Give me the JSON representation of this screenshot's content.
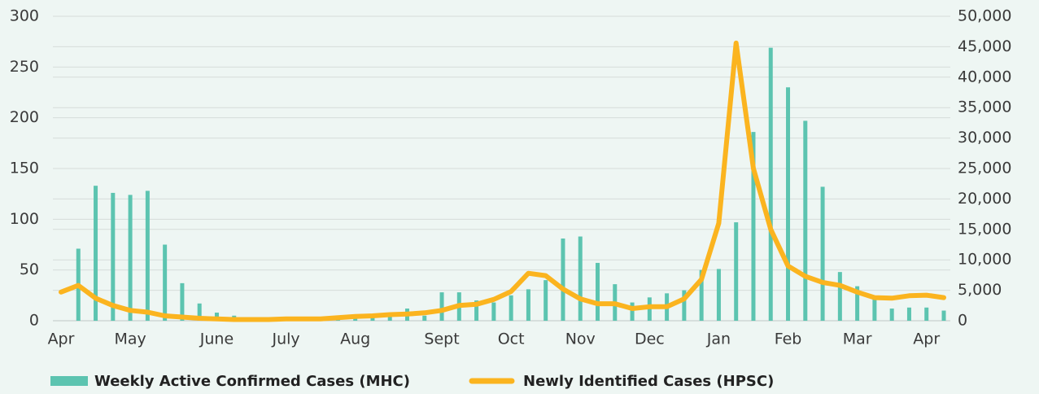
{
  "chart_data": {
    "type": "bar+line",
    "categories": [
      "Apr",
      null,
      null,
      null,
      "May",
      null,
      null,
      null,
      null,
      "June",
      null,
      null,
      null,
      "July",
      null,
      null,
      null,
      "Aug",
      null,
      null,
      null,
      null,
      "Sept",
      null,
      null,
      null,
      "Oct",
      null,
      null,
      null,
      "Nov",
      null,
      null,
      null,
      "Dec",
      null,
      null,
      null,
      "Jan",
      null,
      null,
      null,
      "Feb",
      null,
      null,
      null,
      "Mar",
      null,
      null,
      null,
      "Apr",
      null
    ],
    "series": [
      {
        "name": "Weekly Active Confirmed Cases (MHC)",
        "type": "bar",
        "color": "#5cc4b0",
        "axis": "y",
        "values": [
          null,
          71,
          133,
          126,
          124,
          128,
          75,
          37,
          17,
          8,
          5,
          2,
          1,
          1,
          1,
          1,
          2,
          3,
          4,
          4,
          12,
          5,
          28,
          28,
          20,
          18,
          25,
          31,
          40,
          81,
          83,
          57,
          36,
          18,
          23,
          27,
          30,
          50,
          51,
          97,
          186,
          269,
          230,
          197,
          132,
          48,
          34,
          22,
          12,
          13,
          13,
          10
        ]
      },
      {
        "name": "Newly Identified Cases (HPSC)",
        "type": "line",
        "color": "#fbb41f",
        "axis": "y2",
        "values": [
          4700,
          5800,
          3700,
          2500,
          1700,
          1400,
          800,
          600,
          400,
          300,
          200,
          200,
          200,
          300,
          300,
          300,
          500,
          700,
          800,
          1000,
          1100,
          1300,
          1700,
          2500,
          2700,
          3500,
          4800,
          7800,
          7400,
          5200,
          3600,
          2800,
          2800,
          2000,
          2300,
          2300,
          3600,
          6800,
          16000,
          45600,
          25000,
          15000,
          9000,
          7300,
          6300,
          5800,
          4700,
          3800,
          3700,
          4100,
          4200,
          3800
        ]
      }
    ],
    "ylim": [
      0,
      300
    ],
    "yticks": [
      0,
      50,
      100,
      150,
      200,
      250,
      300
    ],
    "y2lim": [
      0,
      50000
    ],
    "y2ticks": [
      0,
      {
        "value": 5000,
        "label": "5,000"
      },
      {
        "value": 10000,
        "label": "10,000"
      },
      {
        "value": 15000,
        "label": "15,000"
      },
      {
        "value": 20000,
        "label": "20,000"
      },
      {
        "value": 25000,
        "label": "25,000"
      },
      {
        "value": 30000,
        "label": "30,000"
      },
      {
        "value": 35000,
        "label": "35,000"
      },
      {
        "value": 40000,
        "label": "40,000"
      },
      {
        "value": 45000,
        "label": "45,000"
      },
      {
        "value": 50000,
        "label": "50,000"
      }
    ],
    "grid": true,
    "legend": "bottom"
  }
}
